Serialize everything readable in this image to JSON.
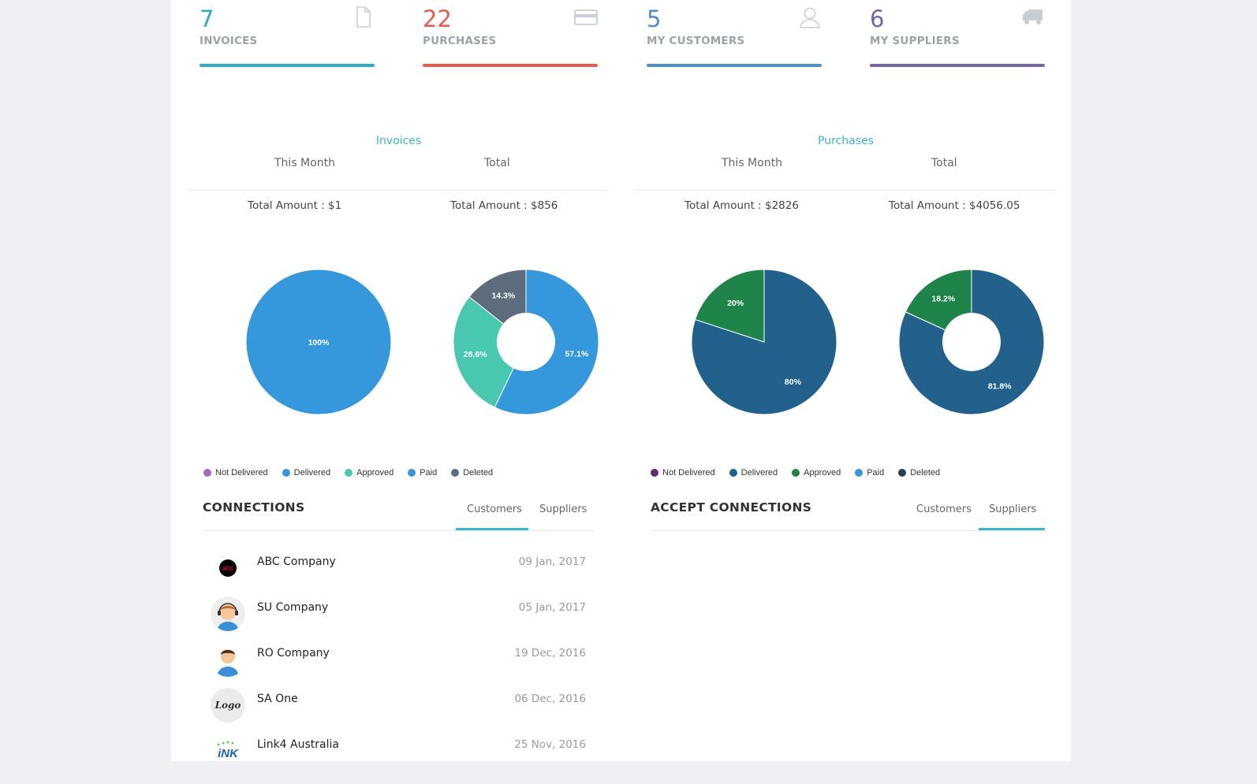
{
  "stats": [
    {
      "value": "7",
      "label": "INVOICES",
      "color": "#2aaec2",
      "icon": "document-icon"
    },
    {
      "value": "22",
      "label": "PURCHASES",
      "color": "#e55b4d",
      "icon": "credit-card-icon"
    },
    {
      "value": "5",
      "label": "MY CUSTOMERS",
      "color": "#4d8fcb",
      "icon": "user-icon"
    },
    {
      "value": "6",
      "label": "MY SUPPLIERS",
      "color": "#7a62a6",
      "icon": "truck-icon"
    }
  ],
  "invoices": {
    "title": "Invoices",
    "tab_month": "This Month",
    "tab_total": "Total",
    "amount_month": "Total Amount : $1",
    "amount_total": "Total Amount : $856"
  },
  "purchases": {
    "title": "Purchases",
    "tab_month": "This Month",
    "tab_total": "Total",
    "amount_month": "Total Amount : $2826",
    "amount_total": "Total Amount : $4056.05"
  },
  "chart_data": [
    {
      "type": "pie",
      "title": "",
      "labels": [
        "Paid"
      ],
      "values": [
        100
      ],
      "colors": [
        "#3698dc"
      ],
      "data_labels": [
        "100%"
      ],
      "donut": false
    },
    {
      "type": "pie",
      "title": "",
      "labels": [
        "Paid",
        "Approved",
        "Deleted"
      ],
      "values": [
        57.1,
        28.6,
        14.3
      ],
      "colors": [
        "#3698dc",
        "#48c9af",
        "#5d6d7e"
      ],
      "data_labels": [
        "57.1%",
        "28.6%",
        "14.3%"
      ],
      "donut": true
    },
    {
      "type": "pie",
      "title": "",
      "labels": [
        "Delivered",
        "Approved"
      ],
      "values": [
        80,
        20
      ],
      "colors": [
        "#22618c",
        "#1e8449"
      ],
      "data_labels": [
        "80%",
        "20%"
      ],
      "donut": false
    },
    {
      "type": "pie",
      "title": "",
      "labels": [
        "Delivered",
        "Approved"
      ],
      "values": [
        81.8,
        18.2
      ],
      "colors": [
        "#22618c",
        "#1e8449"
      ],
      "data_labels": [
        "81.8%",
        "18.2%"
      ],
      "donut": true
    }
  ],
  "legend_left": [
    {
      "label": "Not Delivered",
      "color": "#a569bd"
    },
    {
      "label": "Delivered",
      "color": "#3698dc"
    },
    {
      "label": "Approved",
      "color": "#48c9af"
    },
    {
      "label": "Paid",
      "color": "#3698dc"
    },
    {
      "label": "Deleted",
      "color": "#5d6d7e"
    }
  ],
  "legend_right": [
    {
      "label": "Not Delivered",
      "color": "#5b2c6f"
    },
    {
      "label": "Delivered",
      "color": "#22618c"
    },
    {
      "label": "Approved",
      "color": "#1e8449"
    },
    {
      "label": "Paid",
      "color": "#3698dc"
    },
    {
      "label": "Deleted",
      "color": "#2c3e50"
    }
  ],
  "connections": {
    "title": "CONNECTIONS",
    "tab_customers": "Customers",
    "tab_suppliers": "Suppliers",
    "rows": [
      {
        "name": "ABC Company",
        "date": "09 Jan, 2017",
        "avatar": "abc"
      },
      {
        "name": "SU Company",
        "date": "05 Jan, 2017",
        "avatar": "headset"
      },
      {
        "name": "RO Company",
        "date": "19 Dec, 2016",
        "avatar": "person"
      },
      {
        "name": "SA One",
        "date": "06 Dec, 2016",
        "avatar": "logo"
      },
      {
        "name": "Link4 Australia",
        "date": "25 Nov, 2016",
        "avatar": "link"
      }
    ]
  },
  "accept": {
    "title": "ACCEPT CONNECTIONS",
    "tab_customers": "Customers",
    "tab_suppliers": "Suppliers"
  },
  "avatar_text": {
    "abc": "abc",
    "logo": "Logo",
    "link": "iNK"
  }
}
